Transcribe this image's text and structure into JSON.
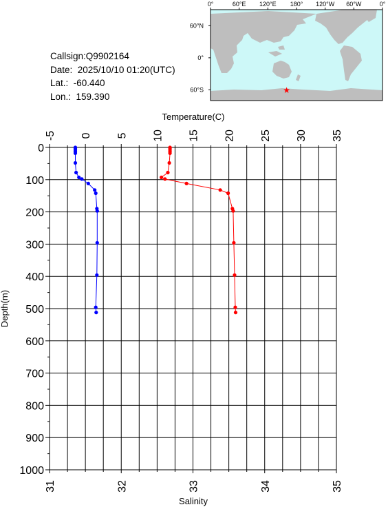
{
  "info": {
    "callsign": "Callsign:Q9902164",
    "date": "Date:  2025/10/10 01:20(UTC)",
    "lat": "Lat.:  -60.440",
    "lon": "Lon.:  159.390"
  },
  "map": {
    "lon_labels": [
      "0°",
      "60°E",
      "120°E",
      "180°",
      "120°W",
      "60°W",
      "0°"
    ],
    "lat_labels": [
      "60°N",
      "0°",
      "60°S"
    ],
    "ocean_color": "#cdf8f8",
    "land_color": "#bebebe",
    "marker": {
      "lat": -60.44,
      "lon": 159.39,
      "symbol": "★",
      "color": "#ff0000"
    }
  },
  "chart_data": {
    "type": "line",
    "ylabel": "Depth(m)",
    "ylim": [
      0,
      1000
    ],
    "yticks": [
      "0",
      "100",
      "200",
      "300",
      "400",
      "500",
      "600",
      "700",
      "800",
      "900",
      "1000"
    ],
    "top_axis": {
      "label": "Temperature(C)",
      "range": [
        -5,
        35
      ],
      "ticks": [
        "-5",
        "0",
        "5",
        "10",
        "15",
        "20",
        "25",
        "30",
        "35"
      ]
    },
    "bottom_axis": {
      "label": "Salinity",
      "range": [
        31,
        35
      ],
      "ticks": [
        "31",
        "32",
        "33",
        "34",
        "35"
      ]
    },
    "grid": true,
    "series": [
      {
        "axis": "top",
        "color": "#ff0000",
        "depth": [
          0,
          3,
          8,
          13,
          18,
          48,
          78,
          93,
          98,
          112,
          132,
          142,
          190,
          197,
          296,
          396,
          496,
          512
        ],
        "values": [
          11.8,
          11.8,
          11.8,
          11.8,
          11.8,
          11.7,
          11.5,
          10.6,
          11.1,
          14.1,
          18.8,
          19.9,
          20.5,
          20.6,
          20.7,
          20.8,
          20.9,
          20.95
        ]
      },
      {
        "axis": "bottom",
        "color": "#0000ff",
        "depth": [
          0,
          3,
          8,
          13,
          18,
          48,
          78,
          93,
          98,
          112,
          132,
          142,
          190,
          197,
          296,
          396,
          496,
          512
        ],
        "values": [
          31.36,
          31.36,
          31.36,
          31.36,
          31.36,
          31.36,
          31.37,
          31.41,
          31.45,
          31.54,
          31.63,
          31.645,
          31.66,
          31.665,
          31.665,
          31.66,
          31.645,
          31.65
        ]
      }
    ]
  }
}
